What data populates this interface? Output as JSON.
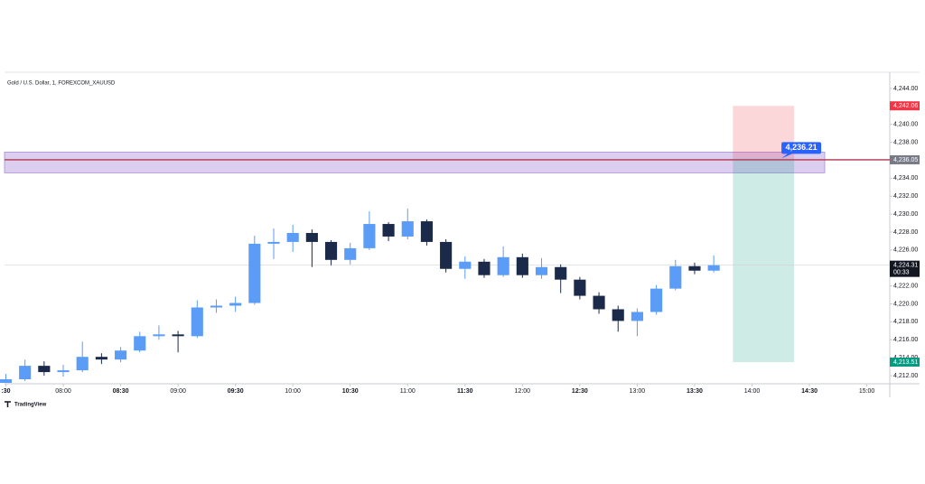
{
  "chart_data": {
    "type": "candlestick",
    "title": "Gold / U.S. Dollar, 1, FOREXCOM_XAUUSD",
    "watermark": "TradingView",
    "x": [
      450,
      460,
      470,
      480,
      490,
      500,
      510,
      520,
      530,
      540,
      550,
      560,
      570,
      580,
      590,
      600,
      610,
      620,
      630,
      640,
      650,
      660,
      670,
      680,
      690,
      700,
      710,
      720,
      730,
      740,
      750,
      760,
      770,
      780,
      790,
      800,
      810,
      820
    ],
    "open": [
      4211.2,
      4211.6,
      4213.1,
      4212.4,
      4212.6,
      4214.1,
      4213.8,
      4214.8,
      4216.4,
      4216.6,
      4216.4,
      4219.6,
      4219.8,
      4220.1,
      4226.7,
      4226.9,
      4227.9,
      4226.9,
      4224.9,
      4226.2,
      4228.9,
      4227.5,
      4229.2,
      4226.9,
      4223.9,
      4224.7,
      4223.2,
      4225.2,
      4223.2,
      4224.1,
      4222.7,
      4220.9,
      4219.4,
      4218.1,
      4219.1,
      4221.7,
      4224.2,
      4223.7
    ],
    "high": [
      4212.2,
      4213.8,
      4213.6,
      4213.2,
      4215.8,
      4214.5,
      4215.2,
      4216.9,
      4217.6,
      4217.0,
      4220.4,
      4220.5,
      4220.8,
      4227.6,
      4228.4,
      4228.8,
      4228.3,
      4227.1,
      4226.8,
      4230.3,
      4229.1,
      4230.6,
      4229.4,
      4227.2,
      4225.3,
      4225.0,
      4226.4,
      4225.6,
      4225.1,
      4224.4,
      4223.0,
      4221.3,
      4219.8,
      4219.5,
      4222.1,
      4224.9,
      4224.6,
      4225.4
    ],
    "low": [
      4211.2,
      4211.4,
      4212.0,
      4211.9,
      4212.4,
      4213.3,
      4213.5,
      4214.6,
      4216.0,
      4214.6,
      4216.2,
      4219.0,
      4219.1,
      4219.9,
      4225.0,
      4225.8,
      4224.1,
      4224.3,
      4224.4,
      4226.0,
      4227.0,
      4227.2,
      4226.5,
      4223.5,
      4222.8,
      4222.9,
      4223.0,
      4222.9,
      4222.8,
      4221.2,
      4220.5,
      4218.9,
      4216.9,
      4216.4,
      4218.8,
      4221.5,
      4223.3,
      4223.5
    ],
    "close": [
      4211.6,
      4213.1,
      4212.4,
      4212.6,
      4214.1,
      4213.8,
      4214.8,
      4216.4,
      4216.6,
      4216.4,
      4219.6,
      4219.8,
      4220.1,
      4226.7,
      4226.9,
      4227.9,
      4226.9,
      4224.9,
      4226.2,
      4228.9,
      4227.5,
      4229.2,
      4226.9,
      4223.9,
      4224.7,
      4223.2,
      4225.2,
      4223.2,
      4224.1,
      4222.7,
      4220.9,
      4219.4,
      4218.1,
      4219.1,
      4221.7,
      4224.2,
      4223.7,
      4224.31
    ],
    "up_color": "#5b9cf6",
    "down_color": "#1c2a4a",
    "xlim": [
      449.3,
      912
    ],
    "ylim": [
      4211.1,
      4245.3
    ],
    "xticks": [
      {
        "value": 450,
        "label": ":30"
      },
      {
        "value": 480,
        "label": "08:00"
      },
      {
        "value": 510,
        "label": "08:30"
      },
      {
        "value": 540,
        "label": "09:00"
      },
      {
        "value": 570,
        "label": "09:30"
      },
      {
        "value": 600,
        "label": "10:00"
      },
      {
        "value": 630,
        "label": "10:30"
      },
      {
        "value": 660,
        "label": "11:00"
      },
      {
        "value": 690,
        "label": "11:30"
      },
      {
        "value": 720,
        "label": "12:00"
      },
      {
        "value": 750,
        "label": "12:30"
      },
      {
        "value": 780,
        "label": "13:00"
      },
      {
        "value": 810,
        "label": "13:30"
      },
      {
        "value": 840,
        "label": "14:00"
      },
      {
        "value": 870,
        "label": "14:30"
      },
      {
        "value": 900,
        "label": "15:00"
      }
    ],
    "yticks": [
      {
        "value": 4212,
        "label": "4,212.00"
      },
      {
        "value": 4214,
        "label": "4,214.00"
      },
      {
        "value": 4216,
        "label": "4,216.00"
      },
      {
        "value": 4218,
        "label": "4,218.00"
      },
      {
        "value": 4220,
        "label": "4,220.00"
      },
      {
        "value": 4222,
        "label": "4,222.00"
      },
      {
        "value": 4224,
        "label": "4,224.00"
      },
      {
        "value": 4226,
        "label": "4,226.00"
      },
      {
        "value": 4228,
        "label": "4,228.00"
      },
      {
        "value": 4230,
        "label": "4,230.00"
      },
      {
        "value": 4232,
        "label": "4,232.00"
      },
      {
        "value": 4234,
        "label": "4,234.00"
      },
      {
        "value": 4236,
        "label": "4,236.00"
      },
      {
        "value": 4238,
        "label": "4,238.00"
      },
      {
        "value": 4240,
        "label": "4,240.00"
      },
      {
        "value": 4242,
        "label": "4,242.00"
      },
      {
        "value": 4244,
        "label": "4,244.00"
      }
    ],
    "zone": {
      "range": [
        4234.6,
        4236.9
      ],
      "end": 878,
      "color": "#c9b3e6"
    },
    "level": {
      "value": 4236.05,
      "label": "4,236.05",
      "color": "#b2344e",
      "tag_color": "#787b86"
    },
    "last": {
      "value": 4224.31,
      "label": "4,224.31",
      "countdown": "00:33",
      "color": "#131722"
    },
    "position": {
      "start": 830,
      "end": 862,
      "entry": {
        "value": 4236.21,
        "label": "4,236.21",
        "color": "#2962ff"
      },
      "stop": {
        "value": 4242.06,
        "label": "4,242.06",
        "color": "#f23645"
      },
      "target": {
        "value": 4213.51,
        "label": "4,213.51",
        "color": "#089981"
      }
    }
  }
}
